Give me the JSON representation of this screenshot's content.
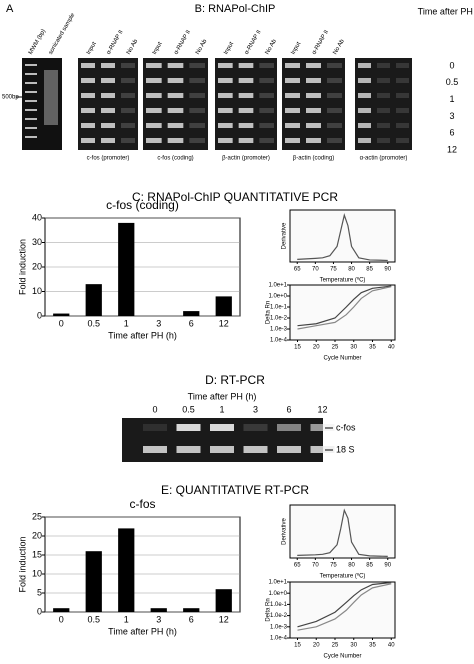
{
  "panel_a": {
    "label": "A",
    "lanes": [
      "MWM (bp)",
      "sonicated sample"
    ],
    "marker": "500bp"
  },
  "panel_b": {
    "title": "B: RNAPol-ChIP",
    "gels": [
      {
        "lanes": [
          "Input",
          "α-RNAP II",
          "No Ab"
        ],
        "caption": "c-fos (promoter)"
      },
      {
        "lanes": [
          "Input",
          "α-RNAP II",
          "No Ab"
        ],
        "caption": "c-fos (coding)"
      },
      {
        "lanes": [
          "Input",
          "α-RNAP II",
          "No Ab"
        ],
        "caption": "β-actin (promoter)"
      },
      {
        "lanes": [
          "Input",
          "α-RNAP II",
          "No Ab"
        ],
        "caption": "β-actin (coding)"
      },
      {
        "lanes": [],
        "caption": "α-actin (promoter)"
      }
    ],
    "time_header": "Time after PH (h)",
    "times": [
      "0",
      "0.5",
      "1",
      "3",
      "6",
      "12"
    ]
  },
  "panel_c": {
    "title": "C: RNAPol-ChIP QUANTITATIVE PCR"
  },
  "panel_d": {
    "title": "D: RT-PCR",
    "time_header": "Time after PH (h)",
    "times": [
      "0",
      "0.5",
      "1",
      "3",
      "6",
      "12"
    ],
    "bands": [
      "c-fos",
      "18 S"
    ]
  },
  "panel_e": {
    "title": "E: QUANTITATIVE RT-PCR"
  },
  "chart_data": [
    {
      "type": "bar",
      "title": "c-fos (coding)",
      "x_label": "Time after PH (h)",
      "y_label": "Fold induction",
      "categories": [
        "0",
        "0.5",
        "1",
        "3",
        "6",
        "12"
      ],
      "values": [
        1,
        13,
        38,
        0,
        2,
        8
      ],
      "color": "#000000",
      "ylim": [
        0,
        40
      ],
      "yticks": [
        0,
        10,
        20,
        30,
        40
      ],
      "grid": true
    },
    {
      "type": "line",
      "x_label": "Temperature (ºC)",
      "y_label": "Derivative",
      "x": [
        65,
        70,
        72,
        74,
        76,
        77,
        78,
        79,
        80,
        82,
        85,
        90
      ],
      "series": [
        {
          "color": "#555555",
          "values": [
            0.05,
            0.07,
            0.08,
            0.12,
            0.3,
            0.6,
            0.9,
            0.7,
            0.3,
            0.08,
            0.04,
            0.03
          ]
        }
      ],
      "xlim": [
        63,
        92
      ],
      "xticks": [
        65,
        70,
        75,
        80,
        85,
        90
      ],
      "ylim": [
        0,
        1
      ]
    },
    {
      "type": "line",
      "x_label": "Cycle Number",
      "y_label": "Delta Rn",
      "log_y": true,
      "x": [
        15,
        20,
        25,
        28,
        30,
        32,
        35,
        40
      ],
      "series": [
        {
          "color": "#444444",
          "values": [
            0.002,
            0.003,
            0.01,
            0.1,
            0.5,
            2,
            5,
            8
          ]
        },
        {
          "color": "#888888",
          "values": [
            0.001,
            0.002,
            0.004,
            0.02,
            0.1,
            0.6,
            3,
            7
          ]
        }
      ],
      "xlim": [
        13,
        41
      ],
      "xticks": [
        15,
        20,
        25,
        30,
        35,
        40
      ],
      "ylim": [
        0.0001,
        10
      ],
      "yticks": [
        {
          "value": 10,
          "label": "1.0e+1"
        },
        {
          "value": 1,
          "label": "1.0e+0"
        },
        {
          "value": 0.1,
          "label": "1.0e-1"
        },
        {
          "value": 0.01,
          "label": "1.0e-2"
        },
        {
          "value": 0.001,
          "label": "1.0e-3"
        },
        {
          "value": 0.0001,
          "label": "1.0e-4"
        }
      ]
    },
    {
      "type": "bar",
      "title": "c-fos",
      "x_label": "Time after PH (h)",
      "y_label": "Fold induction",
      "categories": [
        "0",
        "0.5",
        "1",
        "3",
        "6",
        "12"
      ],
      "values": [
        1,
        16,
        22,
        1,
        1,
        6
      ],
      "color": "#000000",
      "ylim": [
        0,
        25
      ],
      "yticks": [
        0,
        5,
        10,
        15,
        20,
        25
      ],
      "grid": true
    },
    {
      "type": "line",
      "x_label": "Temperature (ºC)",
      "y_label": "Derivative",
      "x": [
        65,
        70,
        72,
        74,
        76,
        77,
        78,
        79,
        80,
        82,
        85,
        90
      ],
      "series": [
        {
          "color": "#555555",
          "values": [
            0.05,
            0.06,
            0.07,
            0.1,
            0.25,
            0.55,
            0.9,
            0.75,
            0.3,
            0.07,
            0.04,
            0.03
          ]
        }
      ],
      "xlim": [
        63,
        92
      ],
      "xticks": [
        65,
        70,
        75,
        80,
        85,
        90
      ],
      "ylim": [
        0,
        1
      ]
    },
    {
      "type": "line",
      "x_label": "Cycle Number",
      "y_label": "Delta Rn",
      "log_y": true,
      "x": [
        15,
        20,
        25,
        28,
        30,
        32,
        35,
        40
      ],
      "series": [
        {
          "color": "#444444",
          "values": [
            0.001,
            0.003,
            0.02,
            0.15,
            0.6,
            2,
            6,
            9
          ]
        },
        {
          "color": "#888888",
          "values": [
            0.0005,
            0.001,
            0.005,
            0.03,
            0.15,
            0.7,
            3,
            7
          ]
        }
      ],
      "xlim": [
        13,
        41
      ],
      "xticks": [
        15,
        20,
        25,
        30,
        35,
        40
      ],
      "ylim": [
        0.0001,
        10
      ],
      "yticks": [
        {
          "value": 10,
          "label": "1.0e+1"
        },
        {
          "value": 1,
          "label": "1.0e+0"
        },
        {
          "value": 0.1,
          "label": "1.0e-1"
        },
        {
          "value": 0.01,
          "label": "1.0e-2"
        },
        {
          "value": 0.001,
          "label": "1.0e-3"
        },
        {
          "value": 0.0001,
          "label": "1.0e-4"
        }
      ]
    }
  ]
}
